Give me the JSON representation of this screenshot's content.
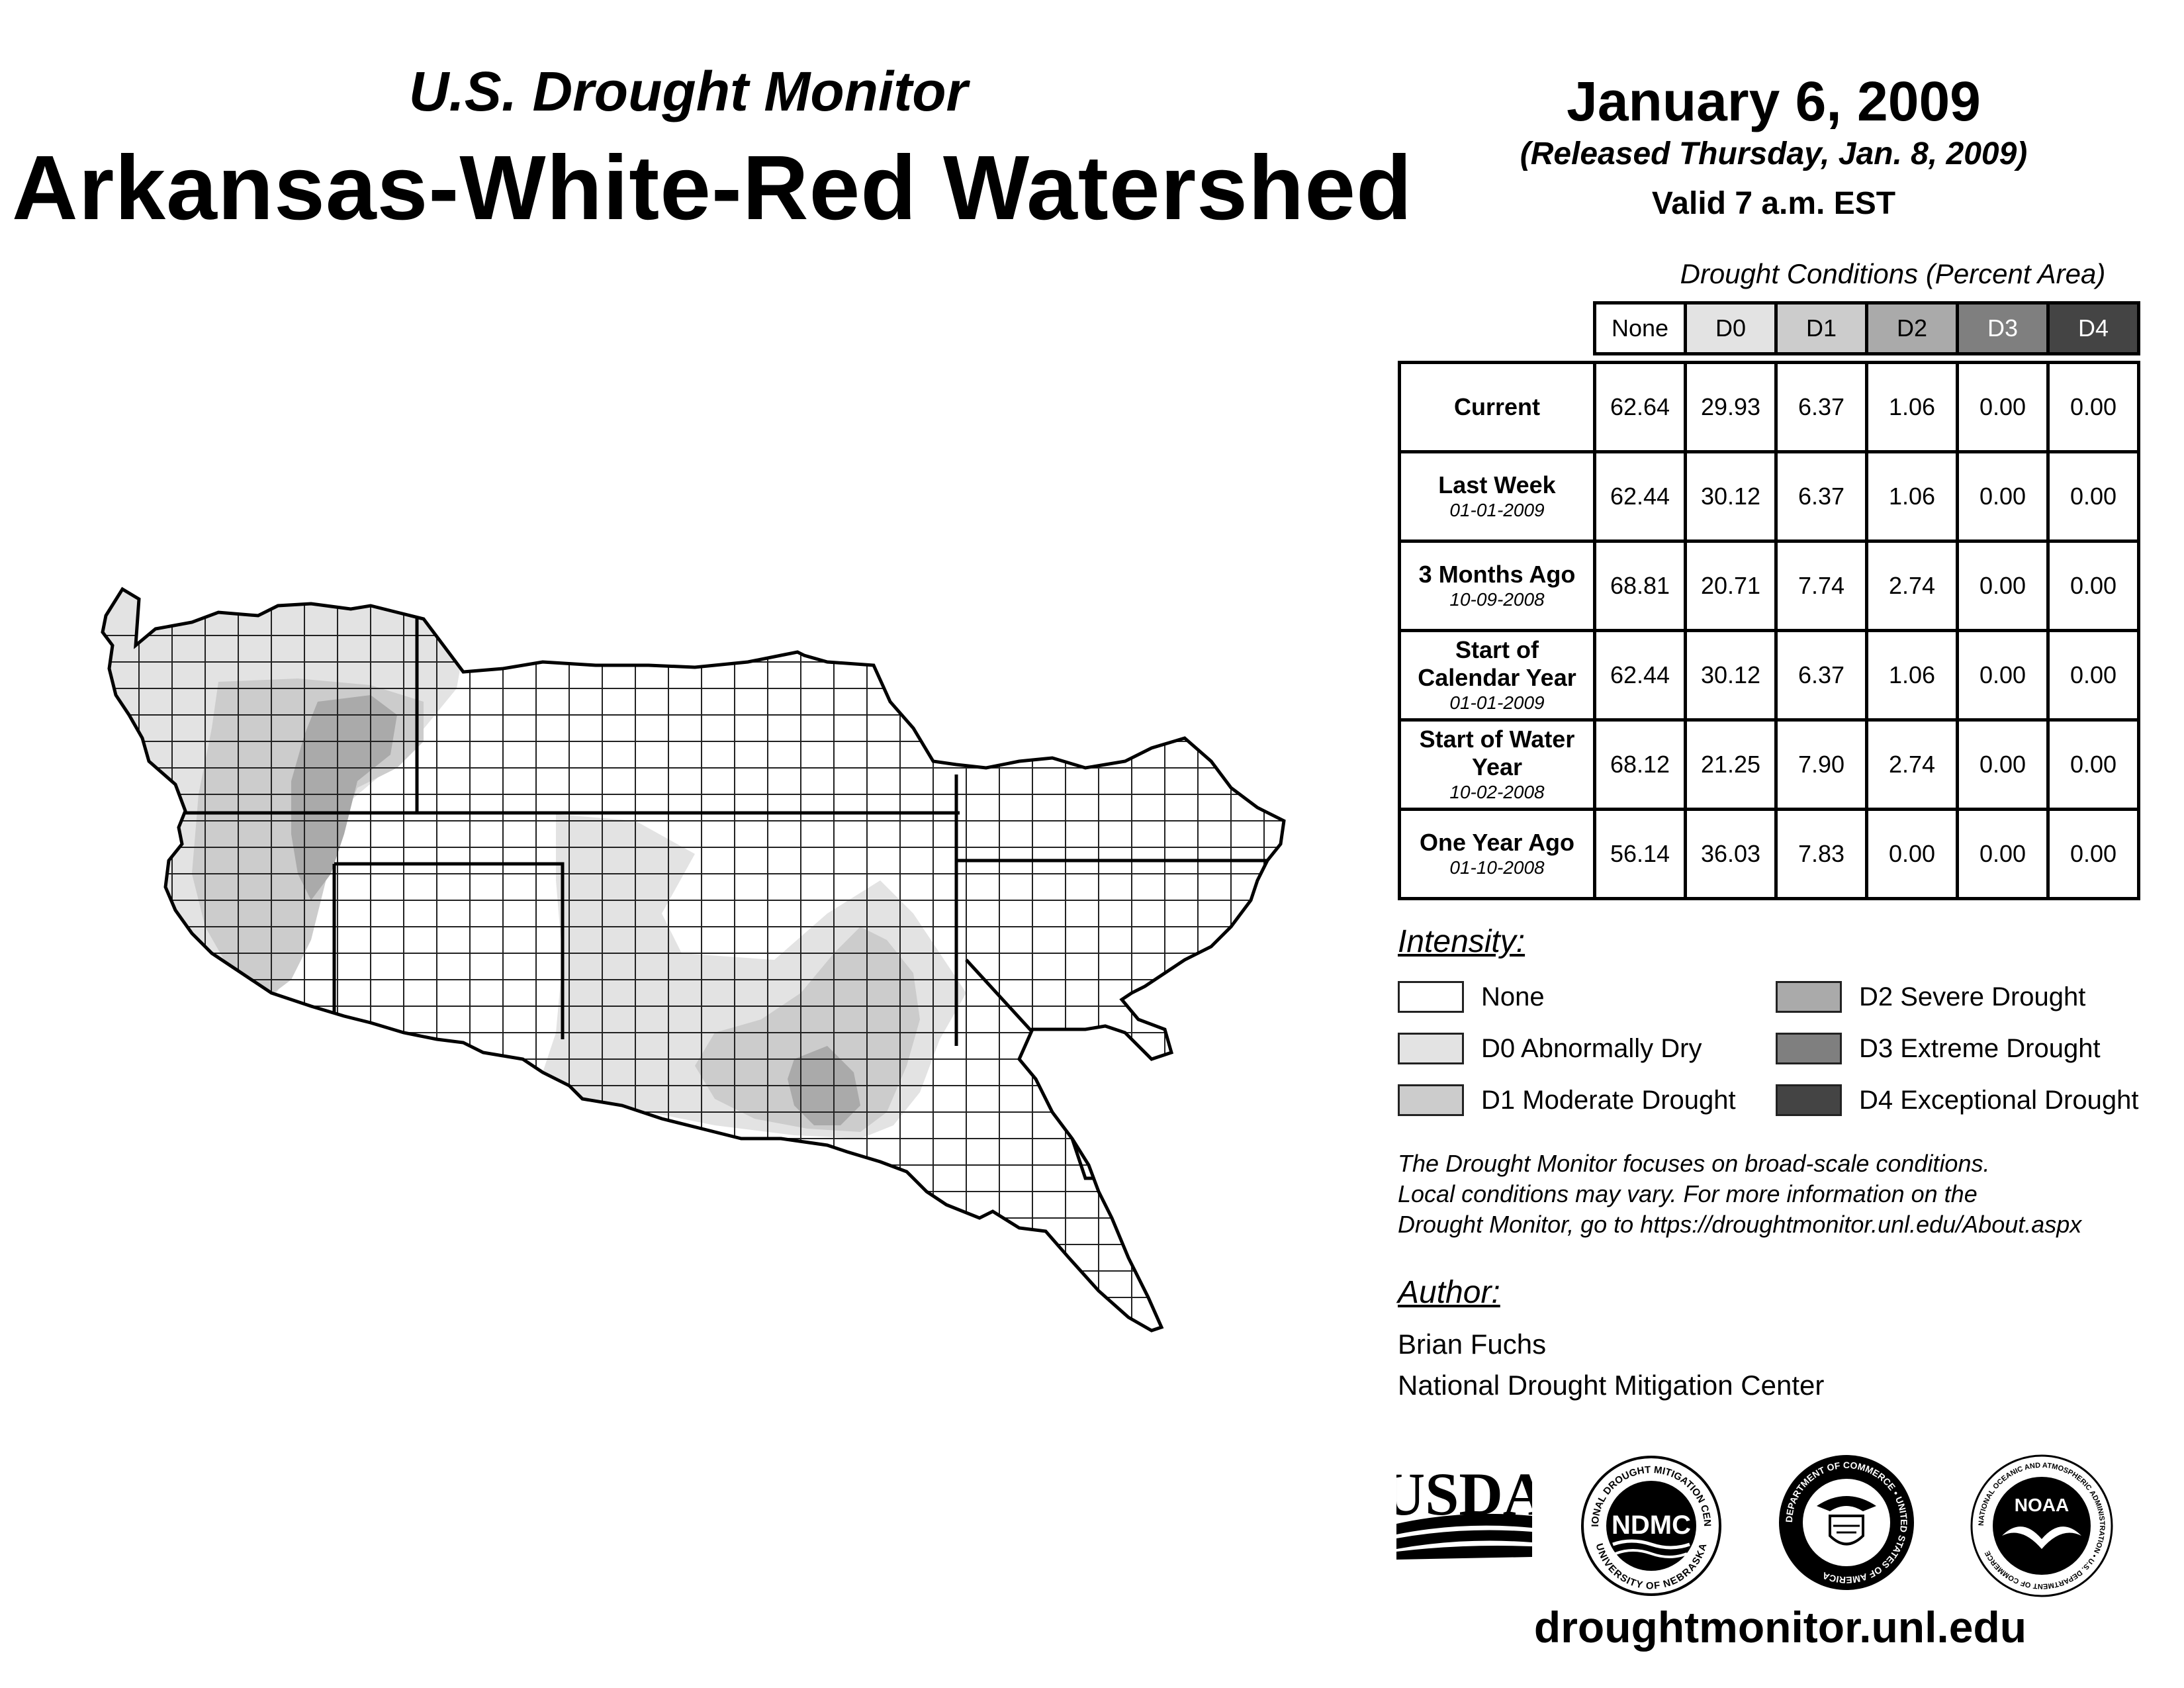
{
  "header": {
    "subtitle": "U.S. Drought Monitor",
    "title": "Arkansas-White-Red Watershed",
    "date": "January 6, 2009",
    "released": "(Released Thursday, Jan. 8, 2009)",
    "valid": "Valid 7 a.m. EST"
  },
  "table": {
    "caption": "Drought Conditions (Percent Area)",
    "columns": [
      "None",
      "D0",
      "D1",
      "D2",
      "D3",
      "D4"
    ],
    "column_colors": [
      "#ffffff",
      "#e3e3e3",
      "#cccccc",
      "#aaaaaa",
      "#7f7f7f",
      "#444444"
    ],
    "rows": [
      {
        "label": "Current",
        "date": "",
        "values": [
          "62.64",
          "29.93",
          "6.37",
          "1.06",
          "0.00",
          "0.00"
        ]
      },
      {
        "label": "Last Week",
        "date": "01-01-2009",
        "values": [
          "62.44",
          "30.12",
          "6.37",
          "1.06",
          "0.00",
          "0.00"
        ]
      },
      {
        "label": "3 Months Ago",
        "date": "10-09-2008",
        "values": [
          "68.81",
          "20.71",
          "7.74",
          "2.74",
          "0.00",
          "0.00"
        ]
      },
      {
        "label": "Start of Calendar Year",
        "date": "01-01-2009",
        "values": [
          "62.44",
          "30.12",
          "6.37",
          "1.06",
          "0.00",
          "0.00"
        ]
      },
      {
        "label": "Start of Water Year",
        "date": "10-02-2008",
        "values": [
          "68.12",
          "21.25",
          "7.90",
          "2.74",
          "0.00",
          "0.00"
        ]
      },
      {
        "label": "One Year Ago",
        "date": "01-10-2008",
        "values": [
          "56.14",
          "36.03",
          "7.83",
          "0.00",
          "0.00",
          "0.00"
        ]
      }
    ]
  },
  "legend": {
    "heading": "Intensity:",
    "items": [
      {
        "label": "None",
        "color": "#ffffff"
      },
      {
        "label": "D0 Abnormally Dry",
        "color": "#e3e3e3"
      },
      {
        "label": "D1 Moderate Drought",
        "color": "#cccccc"
      },
      {
        "label": "D2 Severe Drought",
        "color": "#aaaaaa"
      },
      {
        "label": "D3 Extreme Drought",
        "color": "#7f7f7f"
      },
      {
        "label": "D4 Exceptional Drought",
        "color": "#444444"
      }
    ]
  },
  "note": {
    "line1": "The Drought Monitor focuses on broad-scale conditions.",
    "line2": "Local conditions may vary. For more information on the",
    "line3": "Drought Monitor, go to https://droughtmonitor.unl.edu/About.aspx"
  },
  "author": {
    "heading": "Author:",
    "name": "Brian Fuchs",
    "org": "National Drought Mitigation Center"
  },
  "logos": {
    "usda": "USDA",
    "ndmc": "NDMC",
    "ndmc_ring_top": "NATIONAL DROUGHT MITIGATION CENTER",
    "ndmc_ring_bottom": "UNIVERSITY OF NEBRASKA",
    "doc_ring": "DEPARTMENT OF COMMERCE • UNITED STATES OF AMERICA",
    "noaa": "NOAA",
    "noaa_ring": "NATIONAL OCEANIC AND ATMOSPHERIC ADMINISTRATION • U.S. DEPARTMENT OF COMMERCE"
  },
  "footer": {
    "url": "droughtmonitor.unl.edu"
  }
}
